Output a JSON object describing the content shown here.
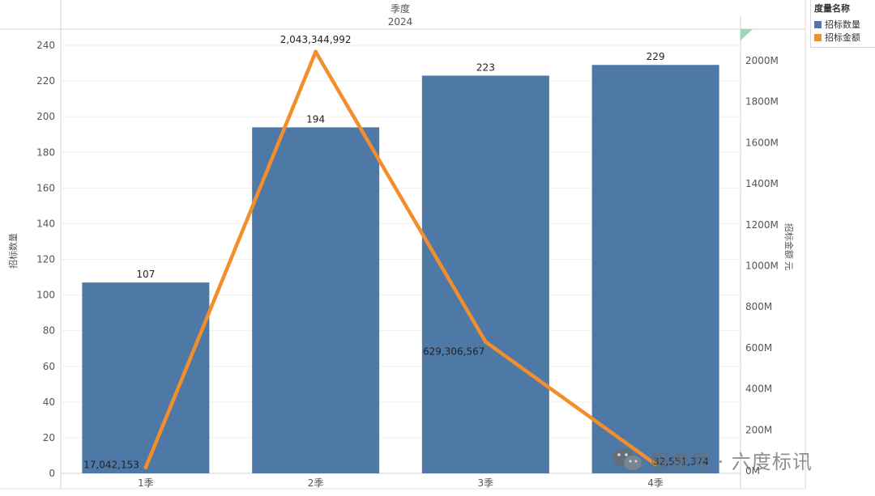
{
  "chart_data": {
    "type": "bar+line",
    "header": {
      "field": "季度",
      "value": "2024"
    },
    "categories": [
      "1季",
      "2季",
      "3季",
      "4季"
    ],
    "series": [
      {
        "name": "招标数量",
        "type": "bar",
        "axis": "left",
        "values": [
          107,
          194,
          223,
          229
        ],
        "labels": [
          "107",
          "194",
          "223",
          "229"
        ],
        "color": "#4e79a7"
      },
      {
        "name": "招标金额",
        "type": "line",
        "axis": "right",
        "values": [
          17042153,
          2043344992,
          629306567,
          32551374
        ],
        "labels": [
          "17,042,153",
          "2,043,344,992",
          "629,306,567",
          "32,551,374"
        ],
        "color": "#f28e2b"
      }
    ],
    "left_axis": {
      "title": "招标数量",
      "range": [
        0,
        240
      ],
      "ticks": [
        "0",
        "20",
        "40",
        "60",
        "80",
        "100",
        "120",
        "140",
        "160",
        "180",
        "200",
        "220",
        "240"
      ]
    },
    "right_axis": {
      "title": "招标金额 元",
      "range": [
        0,
        2000000000
      ],
      "ticks": [
        "0M",
        "200M",
        "400M",
        "600M",
        "800M",
        "1000M",
        "1200M",
        "1400M",
        "1600M",
        "1800M",
        "2000M"
      ]
    },
    "legend": {
      "title": "度量名称",
      "position": "top-right",
      "items": [
        {
          "label": "招标数量",
          "color": "#4e79a7"
        },
        {
          "label": "招标金额",
          "color": "#f28e2b"
        }
      ]
    },
    "grid": true
  },
  "watermark": {
    "text": "服务号 · 六度标讯"
  }
}
